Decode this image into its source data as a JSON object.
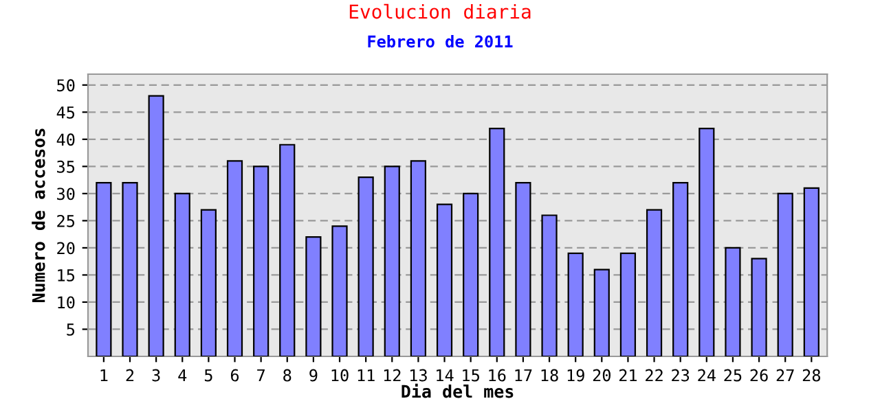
{
  "chart_data": {
    "type": "bar",
    "title": "Evolucion diaria",
    "subtitle": "Febrero de 2011",
    "xlabel": "Dia del mes",
    "ylabel": "Numero de accesos",
    "categories": [
      "1",
      "2",
      "3",
      "4",
      "5",
      "6",
      "7",
      "8",
      "9",
      "10",
      "11",
      "12",
      "13",
      "14",
      "15",
      "16",
      "17",
      "18",
      "19",
      "20",
      "21",
      "22",
      "23",
      "24",
      "25",
      "26",
      "27",
      "28"
    ],
    "values": [
      32,
      32,
      48,
      30,
      27,
      36,
      35,
      39,
      22,
      24,
      33,
      35,
      36,
      28,
      30,
      42,
      32,
      26,
      19,
      16,
      19,
      27,
      32,
      42,
      20,
      18,
      30,
      31
    ],
    "color": "#8080ff",
    "ylim": [
      0,
      52
    ],
    "yticks": [
      5,
      10,
      15,
      20,
      25,
      30,
      35,
      40,
      45,
      50
    ],
    "grid": "y",
    "legend": false
  }
}
